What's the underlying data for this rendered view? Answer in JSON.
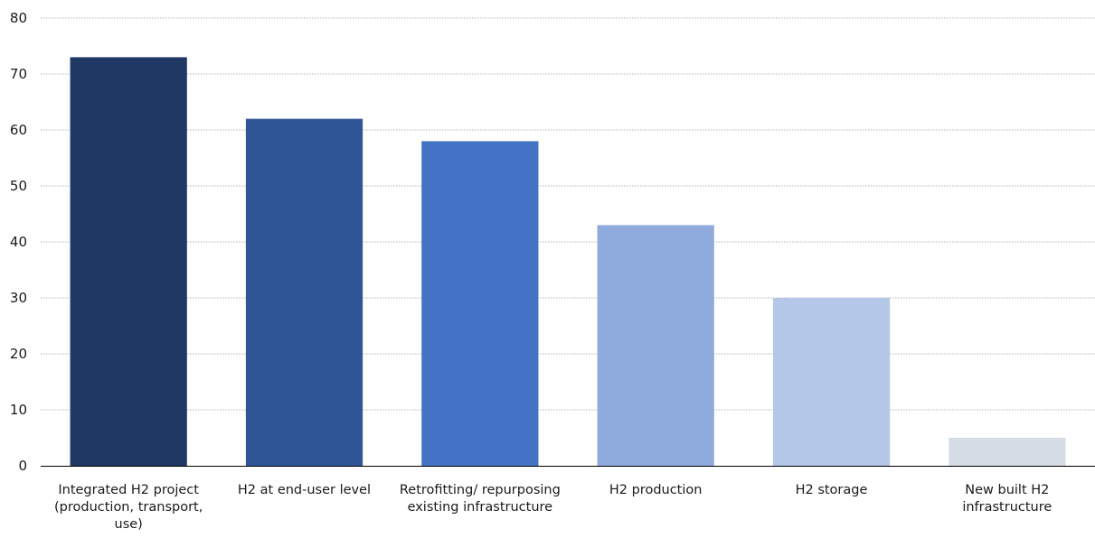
{
  "chart_data": {
    "type": "bar",
    "categories": [
      [
        "Integrated H2 project",
        "(production, transport,",
        "use)"
      ],
      [
        "H2 at end-user level"
      ],
      [
        "Retrofitting/ repurposing",
        "existing infrastructure"
      ],
      [
        "H2 production"
      ],
      [
        "H2 storage"
      ],
      [
        "New built H2",
        "infrastructure"
      ]
    ],
    "values": [
      73,
      62,
      58,
      43,
      30,
      5
    ],
    "bar_colors": [
      "#203864",
      "#2f5597",
      "#4472c4",
      "#8faadc",
      "#b4c7e7",
      "#d6dce5"
    ],
    "ylim": [
      0,
      80
    ],
    "yticks": [
      "0",
      "10",
      "20",
      "30",
      "40",
      "50",
      "60",
      "70",
      "80"
    ],
    "grid": true,
    "legend": "none"
  }
}
